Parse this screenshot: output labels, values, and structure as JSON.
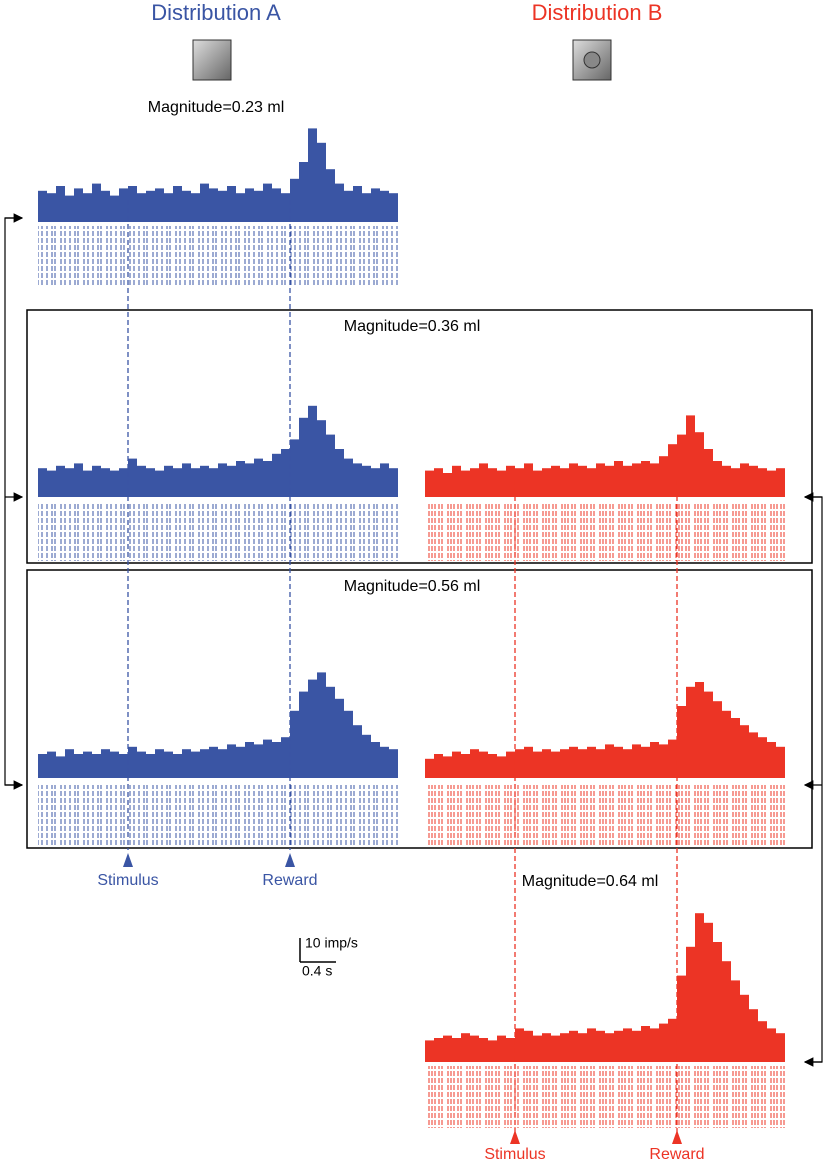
{
  "figure": {
    "title_a": "Distribution A",
    "title_b": "Distribution B",
    "xlim": [
      0,
      4
    ],
    "bins": [
      0,
      0.1,
      0.2,
      0.3,
      0.4,
      0.5,
      0.6,
      0.7,
      0.8,
      0.9,
      1,
      1.1,
      1.2,
      1.3,
      1.4,
      1.5,
      1.6,
      1.7,
      1.8,
      1.9,
      2,
      2.1,
      2.2,
      2.3,
      2.4,
      2.5,
      2.6,
      2.7,
      2.8,
      2.9,
      3,
      3.1,
      3.2,
      3.3,
      3.4,
      3.5,
      3.6,
      3.7,
      3.8,
      3.9,
      4
    ],
    "events": [
      {
        "label": "Stimulus",
        "time": 1.0
      },
      {
        "label": "Reward",
        "time": 2.8
      }
    ],
    "scale_bar": {
      "rate": 10,
      "rate_label": "10 imp/s",
      "time": 0.4,
      "time_label": "0.4 s"
    },
    "panels": [
      {
        "label": "Magnitude=0.23 ml",
        "color": "#3a55a4",
        "values": [
          13,
          12,
          15,
          11,
          14,
          12,
          16,
          13,
          11,
          14,
          15,
          12,
          13,
          14,
          12,
          15,
          13,
          12,
          16,
          14,
          13,
          15,
          12,
          14,
          13,
          16,
          14,
          12,
          18,
          25,
          39,
          33,
          22,
          16,
          13,
          15,
          12,
          14,
          13,
          12
        ]
      },
      {
        "label": "Magnitude=0.36 ml",
        "color": "#3a55a4",
        "values": [
          12,
          11,
          13,
          12,
          14,
          11,
          13,
          12,
          11,
          12,
          16,
          13,
          12,
          11,
          13,
          12,
          14,
          12,
          13,
          12,
          14,
          13,
          15,
          14,
          16,
          15,
          18,
          20,
          24,
          33,
          38,
          32,
          26,
          20,
          16,
          14,
          13,
          12,
          14,
          12
        ]
      },
      {
        "color": "#ec3425",
        "values": [
          11,
          12,
          10,
          13,
          11,
          12,
          14,
          12,
          11,
          13,
          12,
          14,
          11,
          12,
          13,
          12,
          14,
          13,
          12,
          14,
          13,
          15,
          13,
          14,
          15,
          14,
          17,
          22,
          26,
          34,
          27,
          20,
          15,
          13,
          12,
          14,
          13,
          12,
          11,
          12
        ]
      },
      {
        "label": "Magnitude=0.56 ml",
        "color": "#3a55a4",
        "values": [
          10,
          11,
          9,
          12,
          10,
          11,
          10,
          12,
          11,
          10,
          13,
          11,
          10,
          12,
          11,
          10,
          12,
          11,
          12,
          13,
          12,
          14,
          13,
          15,
          14,
          16,
          15,
          17,
          28,
          36,
          41,
          44,
          38,
          33,
          28,
          22,
          18,
          15,
          13,
          12
        ]
      },
      {
        "color": "#ec3425",
        "values": [
          8,
          10,
          9,
          11,
          10,
          12,
          11,
          10,
          9,
          11,
          12,
          13,
          11,
          12,
          11,
          12,
          13,
          12,
          13,
          12,
          14,
          13,
          12,
          14,
          13,
          15,
          14,
          16,
          30,
          38,
          40,
          36,
          32,
          28,
          25,
          22,
          19,
          17,
          15,
          13
        ]
      },
      {
        "label": "Magnitude=0.64 ml",
        "color": "#ec3425",
        "values": [
          9,
          10,
          11,
          10,
          12,
          11,
          10,
          9,
          11,
          10,
          14,
          13,
          11,
          12,
          11,
          12,
          13,
          12,
          14,
          13,
          12,
          13,
          14,
          13,
          15,
          14,
          16,
          18,
          36,
          48,
          62,
          58,
          50,
          42,
          34,
          28,
          22,
          17,
          14,
          12
        ]
      }
    ]
  }
}
